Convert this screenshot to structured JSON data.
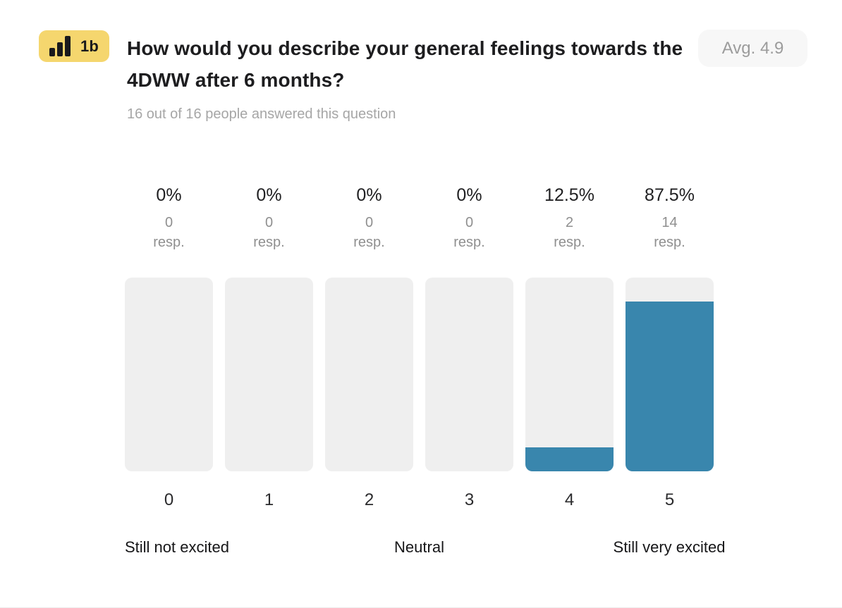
{
  "header": {
    "badge_label": "1b",
    "title": "How would you describe your general feelings towards the 4DWW after 6 months?",
    "avg_label": "Avg. 4.9",
    "subtitle": "16 out of 16 people answered this question"
  },
  "chart_data": {
    "type": "bar",
    "title": "How would you describe your general feelings towards the 4DWW after 6 months?",
    "categories": [
      "0",
      "1",
      "2",
      "3",
      "4",
      "5"
    ],
    "values": [
      0,
      0,
      0,
      0,
      2,
      14
    ],
    "values_pct": [
      0,
      0,
      0,
      0,
      12.5,
      87.5
    ],
    "percent_labels": [
      "0%",
      "0%",
      "0%",
      "0%",
      "12.5%",
      "87.5%"
    ],
    "count_labels": [
      "0",
      "0",
      "0",
      "0",
      "2",
      "14"
    ],
    "resp_suffix": "resp.",
    "scale_labels": {
      "min": "Still not excited",
      "mid": "Neutral",
      "max": "Still very excited"
    },
    "xlabel": "",
    "ylabel": "",
    "ylim": [
      0,
      100
    ],
    "grid": false,
    "legend": false,
    "colors": {
      "fill": "#3986ad",
      "track": "#efefef",
      "badge_bg": "#f5d66e",
      "avg_badge_bg": "#f7f7f7"
    }
  }
}
